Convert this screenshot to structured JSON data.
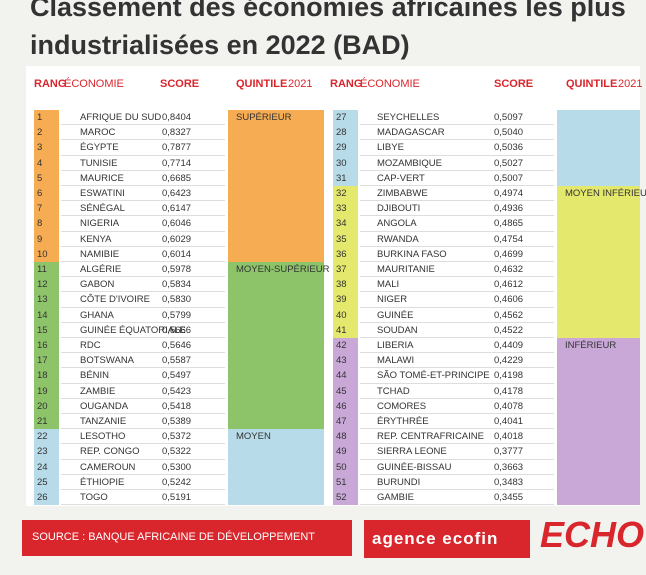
{
  "title_lines": [
    "Classement des économies africaines les plus",
    "industrialisées en 2022 (BAD)"
  ],
  "headers": {
    "rang": "RANG",
    "economie": "ÉCONOMIE",
    "score": "SCORE",
    "quintile": "QUINTILE",
    "year": "2021"
  },
  "groups": [
    {
      "label": "SUPÉRIEUR",
      "color": "#f6ac52",
      "rows": [
        {
          "rank": 1,
          "name": "AFRIQUE DU SUD",
          "score": "0,8404"
        },
        {
          "rank": 2,
          "name": "MAROC",
          "score": "0,8327"
        },
        {
          "rank": 3,
          "name": "ÉGYPTE",
          "score": "0,7877"
        },
        {
          "rank": 4,
          "name": "TUNISIE",
          "score": "0,7714"
        },
        {
          "rank": 5,
          "name": "MAURICE",
          "score": "0,6685"
        },
        {
          "rank": 6,
          "name": "ESWATINI",
          "score": "0,6423"
        },
        {
          "rank": 7,
          "name": "SÉNÉGAL",
          "score": "0,6147"
        },
        {
          "rank": 8,
          "name": "NIGERIA",
          "score": "0,6046"
        },
        {
          "rank": 9,
          "name": "KENYA",
          "score": "0,6029"
        },
        {
          "rank": 10,
          "name": "NAMIBIE",
          "score": "0,6014"
        }
      ]
    },
    {
      "label": "MOYEN-SUPÉRIEUR",
      "color": "#8dc46a",
      "rows": [
        {
          "rank": 11,
          "name": "ALGÉRIE",
          "score": "0,5978"
        },
        {
          "rank": 12,
          "name": "GABON",
          "score": "0,5834"
        },
        {
          "rank": 13,
          "name": "CÔTE D'IVOIRE",
          "score": "0,5830"
        },
        {
          "rank": 14,
          "name": "GHANA",
          "score": "0,5799"
        },
        {
          "rank": 15,
          "name": "GUINÉE ÉQUATORIALE",
          "score": "0,5666"
        },
        {
          "rank": 16,
          "name": "RDC",
          "score": "0,5646"
        },
        {
          "rank": 17,
          "name": "BOTSWANA",
          "score": "0,5587"
        },
        {
          "rank": 18,
          "name": "BÉNIN",
          "score": "0,5497"
        },
        {
          "rank": 19,
          "name": "ZAMBIE",
          "score": "0,5423"
        },
        {
          "rank": 20,
          "name": "OUGANDA",
          "score": "0,5418"
        },
        {
          "rank": 21,
          "name": "TANZANIE",
          "score": "0,5389"
        }
      ]
    },
    {
      "label": "MOYEN",
      "color": "#b7dbe8",
      "rows": [
        {
          "rank": 22,
          "name": "LESOTHO",
          "score": "0,5372"
        },
        {
          "rank": 23,
          "name": "REP. CONGO",
          "score": "0,5322"
        },
        {
          "rank": 24,
          "name": "CAMEROUN",
          "score": "0,5300"
        },
        {
          "rank": 25,
          "name": "ÉTHIOPIE",
          "score": "0,5242"
        },
        {
          "rank": 26,
          "name": "TOGO",
          "score": "0,5191"
        },
        {
          "rank": 27,
          "name": "SEYCHELLES",
          "score": "0,5097"
        },
        {
          "rank": 28,
          "name": "MADAGASCAR",
          "score": "0,5040"
        },
        {
          "rank": 29,
          "name": "LIBYE",
          "score": "0,5036"
        },
        {
          "rank": 30,
          "name": "MOZAMBIQUE",
          "score": "0,5027"
        },
        {
          "rank": 31,
          "name": "CAP-VERT",
          "score": "0,5007"
        }
      ]
    },
    {
      "label": "MOYEN INFÉRIEUR",
      "color": "#e4e86c",
      "rows": [
        {
          "rank": 32,
          "name": "ZIMBABWE",
          "score": "0,4974"
        },
        {
          "rank": 33,
          "name": "DJIBOUTI",
          "score": "0,4936"
        },
        {
          "rank": 34,
          "name": "ANGOLA",
          "score": "0,4865"
        },
        {
          "rank": 35,
          "name": "RWANDA",
          "score": "0,4754"
        },
        {
          "rank": 36,
          "name": "BURKINA FASO",
          "score": "0,4699"
        },
        {
          "rank": 37,
          "name": "MAURITANIE",
          "score": "0,4632"
        },
        {
          "rank": 38,
          "name": "MALI",
          "score": "0,4612"
        },
        {
          "rank": 39,
          "name": "NIGER",
          "score": "0,4606"
        },
        {
          "rank": 40,
          "name": "GUINÉE",
          "score": "0,4562"
        },
        {
          "rank": 41,
          "name": "SOUDAN",
          "score": "0,4522"
        }
      ]
    },
    {
      "label": "INFÉRIEUR",
      "color": "#c9a8d8",
      "rows": [
        {
          "rank": 42,
          "name": "LIBERIA",
          "score": "0,4409"
        },
        {
          "rank": 43,
          "name": "MALAWI",
          "score": "0,4229"
        },
        {
          "rank": 44,
          "name": "SÃO TOMÉ-ET-PRINCIPE",
          "score": "0,4198"
        },
        {
          "rank": 45,
          "name": "TCHAD",
          "score": "0,4178"
        },
        {
          "rank": 46,
          "name": "COMORES",
          "score": "0,4078"
        },
        {
          "rank": 47,
          "name": "ÉRYTHRÉE",
          "score": "0,4041"
        },
        {
          "rank": 48,
          "name": "REP. CENTRAFRICAINE",
          "score": "0,4018"
        },
        {
          "rank": 49,
          "name": "SIERRA LEONE",
          "score": "0,3777"
        },
        {
          "rank": 50,
          "name": "GUINÉE-BISSAU",
          "score": "0,3663"
        },
        {
          "rank": 51,
          "name": "BURUNDI",
          "score": "0,3483"
        },
        {
          "rank": 52,
          "name": "GAMBIE",
          "score": "0,3455"
        }
      ]
    }
  ],
  "source": "SOURCE : BANQUE AFRICAINE DE DÉVELOPPEMENT",
  "brand": "agence ecofin",
  "logo": "ECHO"
}
